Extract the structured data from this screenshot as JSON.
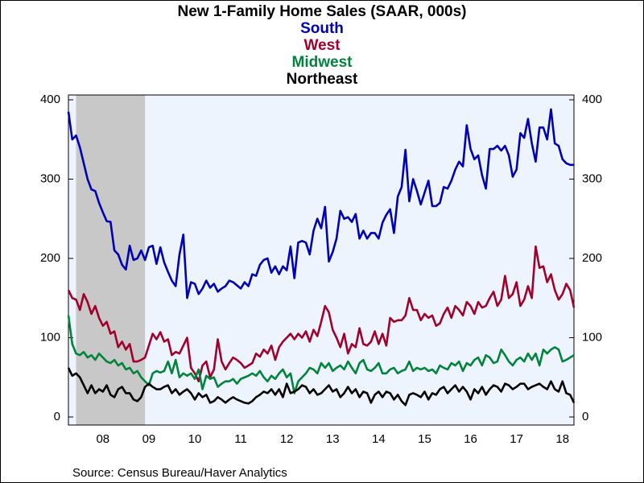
{
  "chart_data": {
    "type": "line",
    "title": "New 1-Family Home Sales (SAAR, 000s)",
    "source": "Source:  Census Bureau/Haver Analytics",
    "categories": [
      null,
      null,
      null,
      null,
      null,
      null,
      null,
      null,
      null,
      "08",
      null,
      null,
      null,
      null,
      null,
      null,
      null,
      null,
      null,
      null,
      null,
      "09",
      null,
      null,
      null,
      null,
      null,
      null,
      null,
      null,
      null,
      null,
      null,
      "10",
      null,
      null,
      null,
      null,
      null,
      null,
      null,
      null,
      null,
      null,
      null,
      "11",
      null,
      null,
      null,
      null,
      null,
      null,
      null,
      null,
      null,
      null,
      null,
      "12",
      null,
      null,
      null,
      null,
      null,
      null,
      null,
      null,
      null,
      null,
      null,
      "13",
      null,
      null,
      null,
      null,
      null,
      null,
      null,
      null,
      null,
      null,
      null,
      "14",
      null,
      null,
      null,
      null,
      null,
      null,
      null,
      null,
      null,
      null,
      null,
      "15",
      null,
      null,
      null,
      null,
      null,
      null,
      null,
      null,
      null,
      null,
      null,
      "16",
      null,
      null,
      null,
      null,
      null,
      null,
      null,
      null,
      null,
      null,
      null,
      "17",
      null,
      null,
      null,
      null,
      null,
      null,
      null,
      null,
      null,
      null,
      null,
      "18",
      null,
      null,
      null
    ],
    "shaded_periods": [
      {
        "start": 2,
        "end": 20
      }
    ],
    "ylim": [
      0,
      400
    ],
    "yticks": [
      0,
      100,
      200,
      300,
      400
    ],
    "y2lim": [
      0,
      400
    ],
    "y2ticks": [
      0,
      100,
      200,
      300,
      400
    ],
    "series": [
      {
        "name": "South",
        "color": "#0000b4",
        "values": [
          385,
          350,
          355,
          340,
          320,
          300,
          287,
          285,
          270,
          258,
          247,
          246,
          210,
          205,
          192,
          186,
          216,
          198,
          200,
          210,
          198,
          214,
          216,
          193,
          214,
          195,
          183,
          172,
          165,
          205,
          230,
          150,
          170,
          168,
          155,
          162,
          172,
          163,
          168,
          158,
          162,
          165,
          172,
          170,
          166,
          162,
          170,
          165,
          180,
          178,
          192,
          198,
          200,
          182,
          190,
          180,
          190,
          185,
          215,
          175,
          220,
          222,
          220,
          205,
          235,
          250,
          238,
          265,
          196,
          208,
          225,
          260,
          250,
          252,
          246,
          256,
          225,
          235,
          225,
          232,
          232,
          225,
          245,
          255,
          262,
          232,
          278,
          290,
          337,
          272,
          300,
          285,
          268,
          283,
          298,
          266,
          266,
          270,
          290,
          288,
          298,
          312,
          322,
          316,
          368,
          338,
          325,
          330,
          305,
          288,
          338,
          338,
          342,
          336,
          342,
          330,
          303,
          312,
          358,
          352,
          376,
          345,
          322,
          365,
          365,
          350,
          388,
          345,
          342,
          325,
          320,
          318,
          318
        ]
      },
      {
        "name": "West",
        "color": "#a0002a",
        "values": [
          160,
          150,
          148,
          135,
          155,
          145,
          130,
          140,
          125,
          115,
          120,
          105,
          108,
          88,
          95,
          85,
          92,
          70,
          70,
          72,
          75,
          90,
          105,
          98,
          107,
          95,
          98,
          78,
          82,
          80,
          90,
          100,
          62,
          55,
          45,
          65,
          70,
          50,
          60,
          98,
          70,
          60,
          68,
          75,
          72,
          68,
          62,
          65,
          68,
          80,
          76,
          85,
          80,
          90,
          72,
          88,
          95,
          100,
          105,
          98,
          105,
          100,
          108,
          95,
          110,
          102,
          120,
          140,
          132,
          110,
          100,
          88,
          105,
          80,
          92,
          88,
          112,
          92,
          90,
          95,
          108,
          92,
          105,
          90,
          125,
          120,
          122,
          122,
          128,
          150,
          135,
          135,
          122,
          130,
          125,
          128,
          115,
          118,
          130,
          138,
          125,
          140,
          135,
          128,
          145,
          140,
          130,
          145,
          138,
          140,
          150,
          158,
          140,
          148,
          178,
          150,
          155,
          170,
          140,
          148,
          165,
          150,
          215,
          188,
          190,
          170,
          180,
          160,
          148,
          155,
          168,
          160,
          138
        ]
      },
      {
        "name": "Midwest",
        "color": "#00843c",
        "values": [
          128,
          92,
          80,
          78,
          82,
          75,
          78,
          72,
          80,
          75,
          70,
          68,
          72,
          65,
          68,
          60,
          62,
          55,
          58,
          50,
          45,
          40,
          55,
          58,
          56,
          58,
          70,
          55,
          72,
          50,
          55,
          52,
          55,
          48,
          60,
          35,
          52,
          48,
          50,
          38,
          42,
          45,
          45,
          48,
          42,
          48,
          50,
          52,
          55,
          52,
          58,
          50,
          45,
          52,
          48,
          55,
          60,
          50,
          55,
          30,
          45,
          50,
          55,
          62,
          60,
          55,
          68,
          62,
          68,
          58,
          62,
          65,
          60,
          70,
          62,
          55,
          68,
          72,
          60,
          58,
          62,
          68,
          55,
          55,
          60,
          62,
          55,
          58,
          60,
          70,
          58,
          62,
          60,
          62,
          58,
          60,
          55,
          65,
          62,
          60,
          68,
          65,
          70,
          58,
          68,
          65,
          72,
          75,
          65,
          78,
          75,
          68,
          70,
          85,
          78,
          70,
          65,
          72,
          75,
          70,
          80,
          72,
          80,
          65,
          85,
          80,
          85,
          88,
          85,
          70,
          72,
          75,
          78
        ]
      },
      {
        "name": "Northeast",
        "color": "#000000",
        "values": [
          62,
          52,
          55,
          50,
          40,
          30,
          40,
          30,
          35,
          32,
          40,
          28,
          25,
          35,
          38,
          30,
          30,
          22,
          20,
          25,
          38,
          42,
          38,
          35,
          35,
          38,
          40,
          30,
          35,
          28,
          32,
          35,
          30,
          22,
          30,
          25,
          28,
          18,
          20,
          25,
          22,
          18,
          22,
          25,
          22,
          20,
          18,
          17,
          20,
          25,
          28,
          32,
          30,
          35,
          28,
          35,
          25,
          42,
          30,
          32,
          35,
          40,
          38,
          30,
          35,
          28,
          30,
          35,
          40,
          32,
          35,
          25,
          30,
          38,
          30,
          35,
          25,
          32,
          30,
          18,
          28,
          32,
          25,
          32,
          30,
          22,
          28,
          20,
          15,
          28,
          30,
          28,
          25,
          32,
          22,
          30,
          28,
          35,
          38,
          30,
          35,
          40,
          32,
          38,
          32,
          22,
          35,
          30,
          38,
          28,
          35,
          40,
          38,
          32,
          42,
          40,
          35,
          38,
          42,
          42,
          35,
          38,
          40,
          42,
          38,
          35,
          45,
          35,
          32,
          45,
          30,
          28,
          18
        ]
      }
    ]
  }
}
